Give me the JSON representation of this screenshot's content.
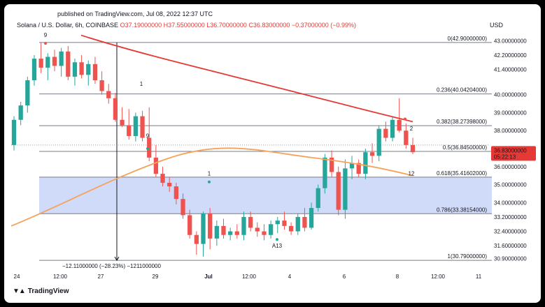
{
  "header": {
    "published": "published on TradingView.com, Jul 08, 2022 12:37 UTC",
    "symbol": "Solana / U.S. Dollar, 6h, COINBASE",
    "open": "O37.19000000",
    "high": "H37.55000000",
    "low": "L36.70000000",
    "close": "C36.83000000",
    "change": "−0.37000000 (−0.99%)",
    "currency": "USD"
  },
  "price_axis": [
    "43.00000000",
    "42.20000000",
    "41.40000000",
    "40.00000000",
    "39.00000000",
    "38.00000000",
    "36.00000000",
    "35.00000000",
    "34.00000000",
    "33.20000000",
    "32.40000000",
    "31.60000000",
    "30.90000000"
  ],
  "price_tag": {
    "price": "36.83000000",
    "countdown": "05:22:13",
    "color": "#e53935"
  },
  "time_axis": [
    "24",
    "12:00",
    "27",
    "29",
    "Jul",
    "12:00",
    "4",
    "6",
    "8",
    "12:00",
    "11"
  ],
  "fib_levels": [
    {
      "label": "0(42.90000000)"
    },
    {
      "label": "0.236(40.04204000)"
    },
    {
      "label": "0.382(38.27398000)"
    },
    {
      "label": "0.5(36.84500000)"
    },
    {
      "label": "0.618(35.41602000)"
    },
    {
      "label": "0.786(33.38154000)"
    },
    {
      "label": "1(30.79000000)"
    }
  ],
  "measure_label": "−12.11000000 (−28.23%) −1211000000",
  "markers": [
    {
      "text": "9",
      "color": "#26a69a"
    },
    {
      "text": "1",
      "color": "#f0b400"
    },
    {
      "text": "9",
      "color": "#e53935"
    },
    {
      "text": "1",
      "color": "#26a69a"
    },
    {
      "text": "A13",
      "color": "#2196f3"
    },
    {
      "text": "2",
      "color": "#e53935"
    },
    {
      "text": "12",
      "color": "#e57c3a"
    }
  ],
  "colors": {
    "up": "#26a69a",
    "down": "#ef5350",
    "ma_slow": "#e53935",
    "ma_fast": "#f5a35c",
    "zone": "#c8d4f8"
  },
  "chart_data": {
    "type": "candlestick",
    "title": "Solana / U.S. Dollar, 6h, COINBASE",
    "ylim": [
      30.6,
      43.4
    ],
    "candles": [
      [
        37.2,
        38.8,
        36.9,
        38.6
      ],
      [
        38.6,
        39.6,
        38.3,
        39.4
      ],
      [
        39.4,
        41.0,
        39.0,
        40.8
      ],
      [
        40.8,
        42.2,
        40.5,
        42.0
      ],
      [
        42.0,
        42.9,
        41.2,
        41.5
      ],
      [
        41.5,
        42.3,
        40.8,
        42.1
      ],
      [
        42.1,
        42.5,
        41.3,
        41.6
      ],
      [
        41.6,
        42.6,
        41.0,
        42.4
      ],
      [
        42.4,
        42.7,
        40.8,
        41.0
      ],
      [
        41.0,
        42.0,
        40.5,
        41.8
      ],
      [
        41.8,
        42.2,
        40.9,
        41.1
      ],
      [
        41.1,
        41.9,
        40.5,
        41.7
      ],
      [
        41.7,
        42.1,
        40.6,
        40.8
      ],
      [
        40.8,
        41.3,
        40.0,
        40.2
      ],
      [
        40.2,
        40.6,
        39.5,
        39.8
      ],
      [
        39.8,
        40.1,
        38.5,
        38.6
      ],
      [
        38.6,
        39.3,
        38.2,
        38.3
      ],
      [
        38.3,
        39.2,
        37.5,
        37.7
      ],
      [
        37.7,
        39.0,
        37.4,
        38.8
      ],
      [
        38.8,
        39.1,
        37.4,
        37.6
      ],
      [
        37.6,
        39.3,
        36.3,
        36.5
      ],
      [
        36.5,
        37.2,
        35.4,
        35.6
      ],
      [
        35.6,
        36.0,
        34.9,
        35.1
      ],
      [
        35.1,
        35.4,
        34.6,
        34.9
      ],
      [
        34.9,
        35.1,
        33.9,
        34.2
      ],
      [
        34.2,
        34.5,
        33.1,
        33.3
      ],
      [
        33.3,
        33.6,
        32.0,
        32.2
      ],
      [
        32.2,
        32.4,
        31.1,
        31.7
      ],
      [
        31.7,
        33.5,
        31.0,
        33.4
      ],
      [
        33.4,
        33.7,
        31.4,
        32.0
      ],
      [
        32.0,
        33.0,
        31.6,
        32.7
      ],
      [
        32.7,
        33.1,
        32.0,
        32.2
      ],
      [
        32.2,
        32.6,
        31.9,
        32.4
      ],
      [
        32.4,
        32.8,
        32.0,
        32.2
      ],
      [
        32.2,
        33.5,
        31.9,
        33.2
      ],
      [
        33.2,
        33.5,
        32.4,
        32.6
      ],
      [
        32.6,
        32.9,
        32.1,
        32.4
      ],
      [
        32.4,
        32.8,
        31.9,
        32.2
      ],
      [
        32.2,
        33.0,
        32.0,
        32.8
      ],
      [
        32.8,
        33.2,
        32.3,
        33.0
      ],
      [
        33.0,
        33.5,
        32.5,
        32.7
      ],
      [
        32.7,
        32.9,
        32.2,
        32.4
      ],
      [
        32.4,
        33.4,
        32.2,
        33.2
      ],
      [
        33.2,
        33.7,
        32.4,
        32.6
      ],
      [
        32.6,
        34.0,
        32.5,
        33.7
      ],
      [
        33.7,
        35.0,
        33.5,
        34.8
      ],
      [
        34.8,
        36.7,
        34.5,
        36.5
      ],
      [
        36.5,
        36.9,
        35.4,
        35.7
      ],
      [
        35.7,
        36.0,
        33.3,
        33.6
      ],
      [
        33.6,
        36.4,
        33.1,
        35.9
      ],
      [
        35.9,
        36.6,
        35.3,
        36.2
      ],
      [
        36.2,
        36.4,
        35.4,
        35.6
      ],
      [
        35.6,
        37.0,
        35.3,
        36.8
      ],
      [
        36.8,
        37.3,
        36.2,
        36.6
      ],
      [
        36.6,
        38.3,
        36.3,
        38.1
      ],
      [
        38.1,
        38.5,
        37.4,
        37.6
      ],
      [
        37.6,
        38.8,
        37.4,
        38.6
      ],
      [
        38.6,
        39.8,
        37.9,
        38.0
      ],
      [
        38.0,
        38.4,
        37.0,
        37.2
      ],
      [
        37.2,
        37.6,
        36.7,
        36.8
      ]
    ]
  }
}
